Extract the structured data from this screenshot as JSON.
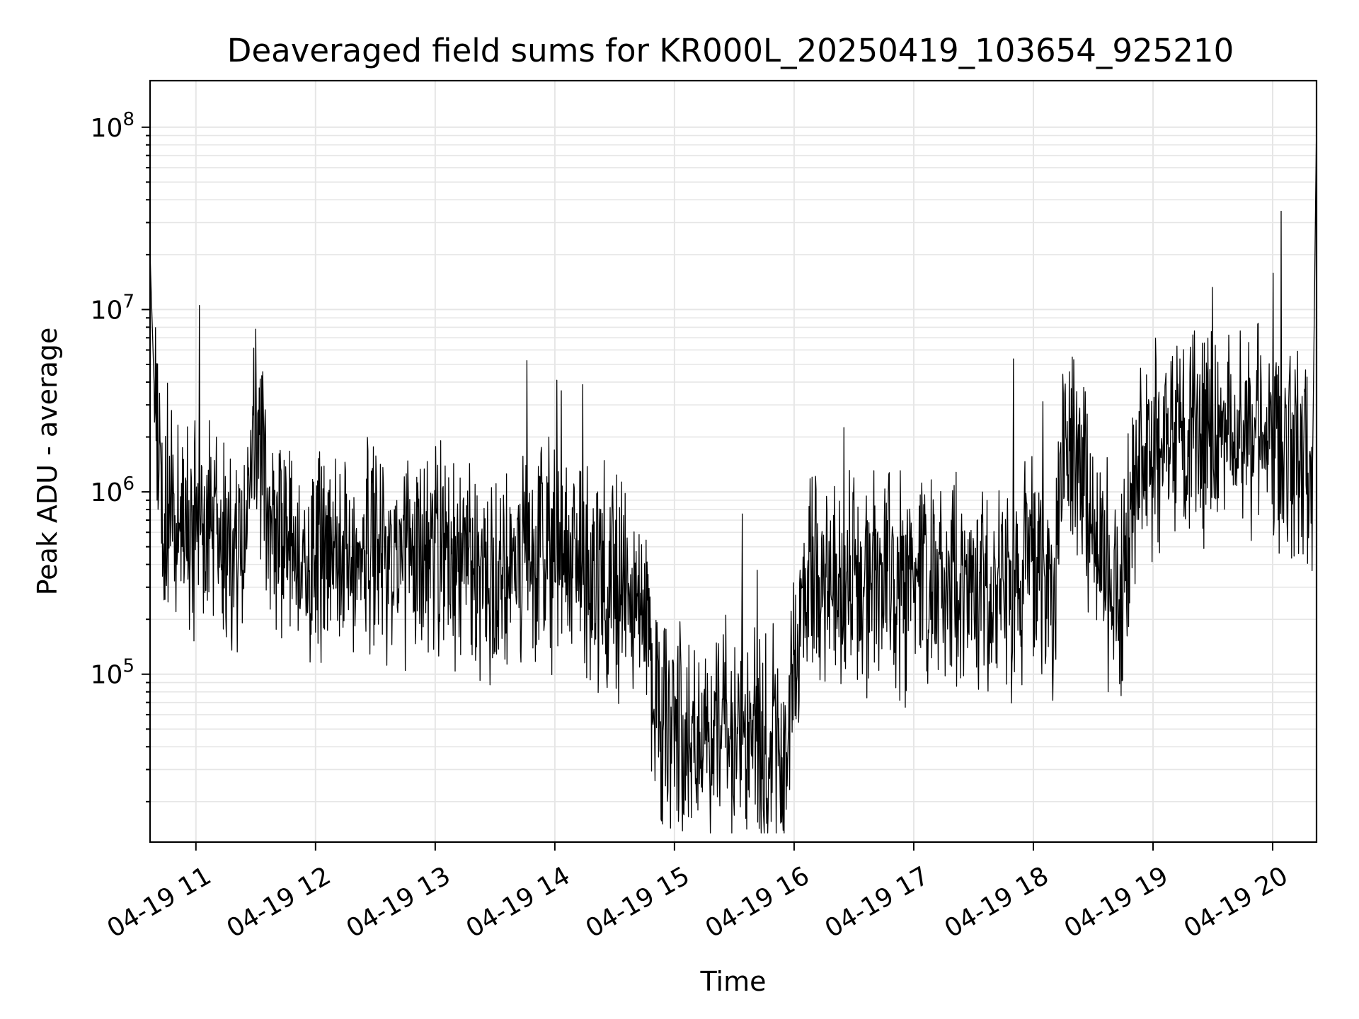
{
  "chart_data": {
    "type": "line",
    "title": "Deaveraged field sums for KR000L_20250419_103654_925210",
    "xlabel": "Time",
    "ylabel": "Peak ADU - average",
    "xlim": [
      "04-19 10:37",
      "04-19 20:22"
    ],
    "ylim": [
      12000,
      180000000
    ],
    "yscale": "log",
    "grid": true,
    "x_tick_labels": [
      "04-19 11",
      "04-19 12",
      "04-19 13",
      "04-19 14",
      "04-19 15",
      "04-19 16",
      "04-19 17",
      "04-19 18",
      "04-19 19",
      "04-19 20"
    ],
    "y_tick_labels": [
      {
        "value": 100000,
        "base": "10",
        "exp": "5"
      },
      {
        "value": 1000000,
        "base": "10",
        "exp": "6"
      },
      {
        "value": 10000000,
        "base": "10",
        "exp": "7"
      },
      {
        "value": 100000000,
        "base": "10",
        "exp": "8"
      }
    ],
    "line_color": "#000000",
    "series": [
      {
        "x": [
          "04-19 10:37",
          "04-19 10:40",
          "04-19 10:45",
          "04-19 10:50",
          "04-19 11:00",
          "04-19 11:05",
          "04-19 11:10",
          "04-19 11:20",
          "04-19 11:25",
          "04-19 11:30",
          "04-19 11:40",
          "04-19 11:50",
          "04-19 12:00",
          "04-19 12:15",
          "04-19 12:30",
          "04-19 12:45",
          "04-19 12:50",
          "04-19 13:00",
          "04-19 13:15",
          "04-19 13:30",
          "04-19 13:45",
          "04-19 14:00",
          "04-19 14:05",
          "04-19 14:15",
          "04-19 14:30",
          "04-19 14:40",
          "04-19 14:45",
          "04-19 14:50",
          "04-19 14:55",
          "04-19 15:00",
          "04-19 15:15",
          "04-19 15:30",
          "04-19 15:40",
          "04-19 15:50",
          "04-19 15:55",
          "04-19 16:05",
          "04-19 16:15",
          "04-19 16:30",
          "04-19 16:45",
          "04-19 17:00",
          "04-19 17:15",
          "04-19 17:30",
          "04-19 17:45",
          "04-19 17:55",
          "04-19 18:00",
          "04-19 18:10",
          "04-19 18:15",
          "04-19 18:20",
          "04-19 18:30",
          "04-19 18:40",
          "04-19 18:45",
          "04-19 18:50",
          "04-19 19:00",
          "04-19 19:15",
          "04-19 19:30",
          "04-19 19:45",
          "04-19 20:00",
          "04-19 20:15",
          "04-19 20:20",
          "04-19 20:22"
        ],
        "y": [
          20000000,
          1800000,
          900000,
          700000,
          650000,
          600000,
          550000,
          500000,
          450000,
          2500000,
          550000,
          500000,
          500000,
          480000,
          450000,
          500000,
          600000,
          450000,
          420000,
          380000,
          400000,
          420000,
          450000,
          400000,
          300000,
          250000,
          200000,
          90000,
          50000,
          45000,
          42000,
          45000,
          42000,
          40000,
          38000,
          300000,
          280000,
          300000,
          320000,
          300000,
          300000,
          280000,
          250000,
          300000,
          350000,
          300000,
          2000000,
          1500000,
          500000,
          300000,
          200000,
          1200000,
          1800000,
          1900000,
          2200000,
          2000000,
          2000000,
          1500000,
          1400000,
          110000000
        ]
      }
    ]
  }
}
